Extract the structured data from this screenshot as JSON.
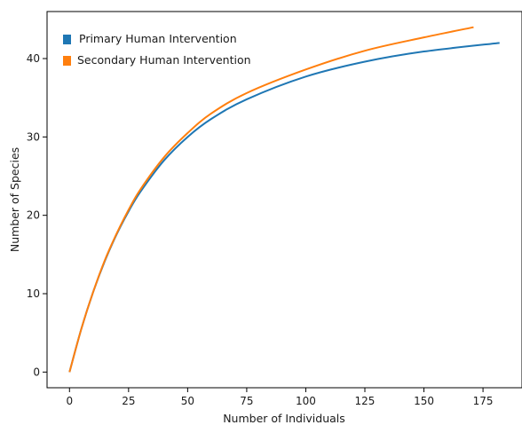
{
  "chart_data": {
    "type": "line",
    "title": "",
    "xlabel": "Number of Individuals",
    "ylabel": "Number of Species",
    "xlim": [
      -9.5,
      191.5
    ],
    "ylim": [
      -2,
      46
    ],
    "xticks": [
      0,
      25,
      50,
      75,
      100,
      125,
      150,
      175
    ],
    "yticks": [
      0,
      10,
      20,
      30,
      40
    ],
    "grid": false,
    "legend_position": "top-left",
    "series": [
      {
        "name": "Primary Human Intervention",
        "color": "#1f77b4",
        "x": [
          0,
          5,
          10,
          15,
          20,
          25,
          30,
          40,
          50,
          60,
          75,
          100,
          125,
          150,
          182
        ],
        "y": [
          0,
          5.5,
          10.2,
          14.2,
          17.6,
          20.5,
          23.0,
          27.0,
          30.0,
          32.3,
          34.8,
          37.7,
          39.6,
          40.9,
          42.0
        ]
      },
      {
        "name": "Secondary Human Intervention",
        "color": "#ff7f0e",
        "x": [
          0,
          5,
          10,
          15,
          20,
          25,
          30,
          40,
          50,
          60,
          75,
          100,
          125,
          150,
          171
        ],
        "y": [
          0,
          5.5,
          10.2,
          14.3,
          17.7,
          20.7,
          23.3,
          27.4,
          30.5,
          33.0,
          35.6,
          38.6,
          41.0,
          42.7,
          44.0
        ]
      }
    ]
  }
}
